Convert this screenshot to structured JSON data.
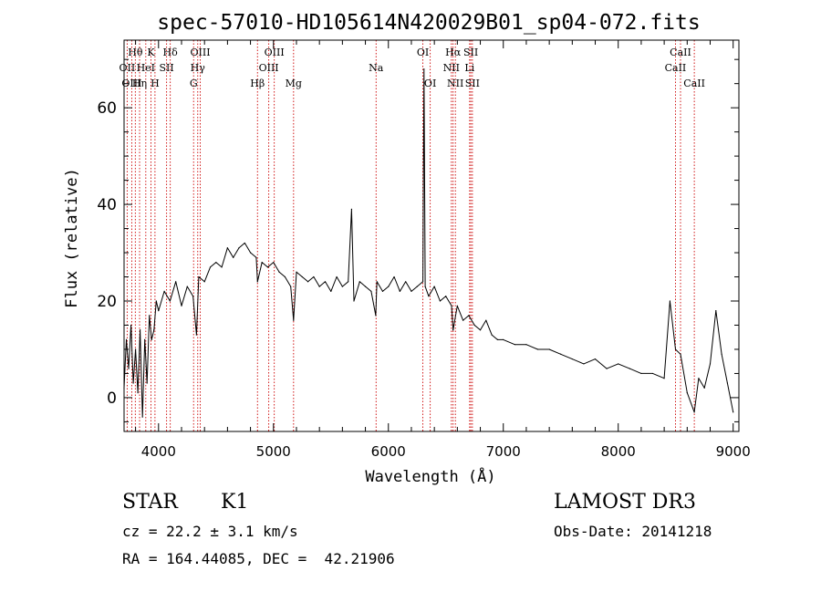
{
  "chart_data": {
    "type": "line",
    "title": "spec-57010-HD105614N420029B01_sp04-072.fits",
    "xlabel": "Wavelength (Å)",
    "ylabel": "Flux (relative)",
    "xlim": [
      3700,
      9050
    ],
    "ylim": [
      -7,
      74
    ],
    "xticks": [
      4000,
      5000,
      6000,
      7000,
      8000,
      9000
    ],
    "yticks": [
      0,
      20,
      40,
      60
    ],
    "series": [
      {
        "name": "flux",
        "x": [
          3700,
          3720,
          3740,
          3760,
          3780,
          3800,
          3820,
          3840,
          3860,
          3880,
          3900,
          3920,
          3940,
          3960,
          3980,
          4000,
          4050,
          4100,
          4150,
          4200,
          4250,
          4300,
          4330,
          4350,
          4400,
          4450,
          4500,
          4550,
          4600,
          4650,
          4700,
          4750,
          4800,
          4850,
          4861,
          4900,
          4950,
          5000,
          5050,
          5100,
          5150,
          5175,
          5200,
          5250,
          5300,
          5350,
          5400,
          5450,
          5500,
          5550,
          5600,
          5650,
          5680,
          5700,
          5750,
          5800,
          5850,
          5890,
          5900,
          5950,
          6000,
          6050,
          6100,
          6150,
          6200,
          6250,
          6300,
          6310,
          6320,
          6350,
          6400,
          6450,
          6500,
          6550,
          6563,
          6600,
          6650,
          6700,
          6750,
          6800,
          6850,
          6900,
          6950,
          7000,
          7100,
          7200,
          7300,
          7400,
          7500,
          7600,
          7700,
          7800,
          7900,
          8000,
          8100,
          8200,
          8300,
          8400,
          8450,
          8498,
          8542,
          8600,
          8662,
          8700,
          8750,
          8800,
          8850,
          8900,
          8950,
          9000
        ],
        "values": [
          2,
          12,
          6,
          15,
          3,
          10,
          1,
          14,
          -4,
          12,
          3,
          17,
          12,
          14,
          20,
          18,
          22,
          20,
          24,
          19,
          23,
          21,
          13,
          25,
          24,
          27,
          28,
          27,
          31,
          29,
          31,
          32,
          30,
          29,
          24,
          28,
          27,
          28,
          26,
          25,
          23,
          16,
          26,
          25,
          24,
          25,
          23,
          24,
          22,
          25,
          23,
          24,
          39,
          20,
          24,
          23,
          22,
          17,
          24,
          22,
          23,
          25,
          22,
          24,
          22,
          23,
          24,
          68,
          23,
          21,
          23,
          20,
          21,
          19,
          14,
          19,
          16,
          17,
          15,
          14,
          16,
          13,
          12,
          12,
          11,
          11,
          10,
          10,
          9,
          8,
          7,
          8,
          6,
          7,
          6,
          5,
          5,
          4,
          20,
          10,
          9,
          1,
          -3,
          4,
          2,
          7,
          18,
          9,
          3,
          -3
        ]
      }
    ],
    "lines": [
      {
        "name": "Hθ",
        "x": 3798,
        "row": 0
      },
      {
        "name": "OII",
        "x": 3727,
        "row": 1
      },
      {
        "name": "OIII",
        "x": 3767,
        "row": 2
      },
      {
        "name": "Hη",
        "x": 3835,
        "row": 2
      },
      {
        "name": "HeI",
        "x": 3889,
        "row": 1
      },
      {
        "name": "K",
        "x": 3934,
        "row": 0
      },
      {
        "name": "H",
        "x": 3969,
        "row": 2
      },
      {
        "name": "SII",
        "x": 4070,
        "row": 1
      },
      {
        "name": "Hδ",
        "x": 4102,
        "row": 0
      },
      {
        "name": "G",
        "x": 4305,
        "row": 2
      },
      {
        "name": "Hγ",
        "x": 4341,
        "row": 1
      },
      {
        "name": "OIII",
        "x": 4363,
        "row": 0
      },
      {
        "name": "Hβ",
        "x": 4861,
        "row": 2
      },
      {
        "name": "OIII",
        "x": 4959,
        "row": 1
      },
      {
        "name": "OIII",
        "x": 5007,
        "row": 0
      },
      {
        "name": "Mg",
        "x": 5175,
        "row": 2
      },
      {
        "name": "Na",
        "x": 5893,
        "row": 1
      },
      {
        "name": "OI",
        "x": 6300,
        "row": 0
      },
      {
        "name": "OI",
        "x": 6364,
        "row": 2
      },
      {
        "name": "NII",
        "x": 6548,
        "row": 1
      },
      {
        "name": "Hα",
        "x": 6563,
        "row": 0
      },
      {
        "name": "NII",
        "x": 6583,
        "row": 2
      },
      {
        "name": "SII",
        "x": 6717,
        "row": 0
      },
      {
        "name": "Li",
        "x": 6707,
        "row": 1
      },
      {
        "name": "SII",
        "x": 6731,
        "row": 2
      },
      {
        "name": "CaII",
        "x": 8498,
        "row": 1
      },
      {
        "name": "CaII",
        "x": 8542,
        "row": 0
      },
      {
        "name": "CaII",
        "x": 8662,
        "row": 2
      }
    ]
  },
  "info": {
    "object_class": "STAR",
    "subclass": "K1",
    "survey": "LAMOST DR3",
    "cz": "cz = 22.2 ± 3.1 km/s",
    "obs_date": "Obs-Date: 20141218",
    "coords": "RA = 164.44085, DEC =  42.21906"
  },
  "colors": {
    "axis": "#000000",
    "line_markers": "#cc0000",
    "spectrum": "#000000"
  }
}
